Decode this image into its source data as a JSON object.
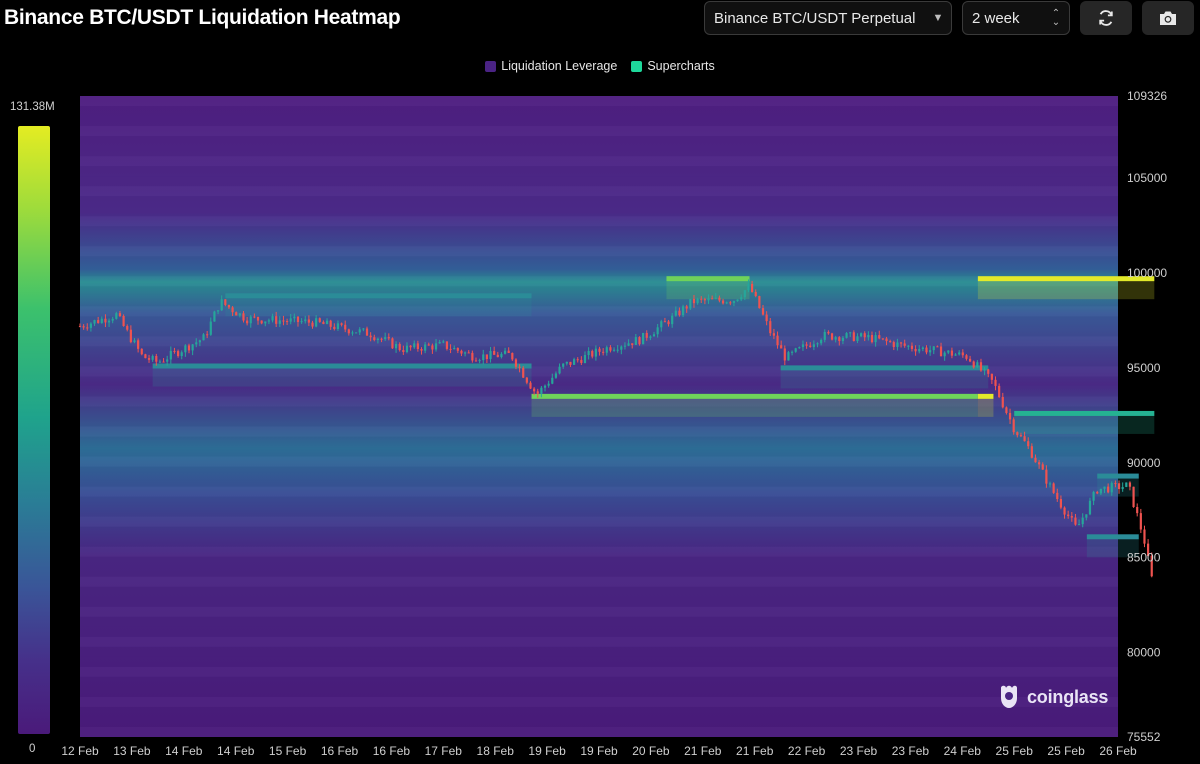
{
  "header": {
    "title": "Binance BTC/USDT Liquidation Heatmap",
    "pair_select": "Binance BTC/USDT Perpetual",
    "range_select": "2 week",
    "refresh_icon": "refresh-icon",
    "camera_icon": "camera-icon"
  },
  "scale": {
    "max_label": "131.38M",
    "min_label": "0"
  },
  "watermark": {
    "text": "coinglass",
    "icon": "coinglass-logo-icon"
  },
  "colors": {
    "background": "#000000",
    "heat_low": "#4a1a7a",
    "heat_mid": "#1fa38c",
    "heat_high": "#e4ec22",
    "legend_leverage": "#4a2384",
    "legend_supercharts": "#1ed89b",
    "candle_up": "#26a69a",
    "candle_down": "#ef5350"
  },
  "chart_data": {
    "type": "heatmap",
    "title": "Binance BTC/USDT Liquidation Heatmap",
    "legend": [
      "Liquidation Leverage",
      "Supercharts"
    ],
    "legend_position": "top-center",
    "y_axis_side": "right",
    "ylim": [
      75552,
      109326
    ],
    "yticks": [
      109326,
      105000,
      100000,
      95000,
      90000,
      85000,
      80000,
      75552
    ],
    "x_tick_labels": [
      "12 Feb",
      "13 Feb",
      "14 Feb",
      "14 Feb",
      "15 Feb",
      "16 Feb",
      "16 Feb",
      "17 Feb",
      "18 Feb",
      "19 Feb",
      "19 Feb",
      "20 Feb",
      "21 Feb",
      "21 Feb",
      "22 Feb",
      "23 Feb",
      "23 Feb",
      "24 Feb",
      "25 Feb",
      "25 Feb",
      "26 Feb"
    ],
    "color_scale_range": [
      "0",
      "131.38M"
    ],
    "price_path": [
      [
        0,
        97200
      ],
      [
        0.7,
        97800
      ],
      [
        1.2,
        95600
      ],
      [
        1.5,
        95300
      ],
      [
        2.4,
        96600
      ],
      [
        2.7,
        98500
      ],
      [
        3.2,
        97600
      ],
      [
        4.5,
        97400
      ],
      [
        5.6,
        96800
      ],
      [
        6.2,
        96000
      ],
      [
        7.0,
        96200
      ],
      [
        7.6,
        95600
      ],
      [
        8.3,
        95700
      ],
      [
        8.8,
        93600
      ],
      [
        9.3,
        95100
      ],
      [
        10.2,
        96100
      ],
      [
        10.8,
        96500
      ],
      [
        11.4,
        97600
      ],
      [
        11.8,
        98500
      ],
      [
        12.6,
        98600
      ],
      [
        12.9,
        99300
      ],
      [
        13.3,
        96900
      ],
      [
        13.6,
        95500
      ],
      [
        14.3,
        96700
      ],
      [
        15.2,
        96600
      ],
      [
        15.8,
        96200
      ],
      [
        16.5,
        95900
      ],
      [
        17.1,
        95600
      ],
      [
        17.6,
        94200
      ],
      [
        18.0,
        91800
      ],
      [
        18.3,
        90700
      ],
      [
        18.7,
        88700
      ],
      [
        19.2,
        86500
      ],
      [
        19.6,
        88600
      ],
      [
        20.2,
        88800
      ],
      [
        20.5,
        86000
      ],
      [
        20.7,
        83200
      ]
    ],
    "liquidation_bands": [
      {
        "price": 99700,
        "from_day": 17.3,
        "to_day": 20.7,
        "intensity": 1.0
      },
      {
        "price": 99700,
        "from_day": 11.3,
        "to_day": 12.9,
        "intensity": 0.72
      },
      {
        "price": 93500,
        "from_day": 8.7,
        "to_day": 17.3,
        "intensity": 0.78
      },
      {
        "price": 93500,
        "from_day": 17.3,
        "to_day": 17.6,
        "intensity": 0.95
      },
      {
        "price": 92600,
        "from_day": 18.0,
        "to_day": 20.7,
        "intensity": 0.55
      },
      {
        "price": 89300,
        "from_day": 19.6,
        "to_day": 20.4,
        "intensity": 0.45
      },
      {
        "price": 86100,
        "from_day": 19.4,
        "to_day": 20.4,
        "intensity": 0.45
      },
      {
        "price": 95100,
        "from_day": 1.4,
        "to_day": 8.7,
        "intensity": 0.45
      },
      {
        "price": 98800,
        "from_day": 2.8,
        "to_day": 8.7,
        "intensity": 0.45
      },
      {
        "price": 95000,
        "from_day": 13.5,
        "to_day": 17.5,
        "intensity": 0.5
      }
    ]
  }
}
